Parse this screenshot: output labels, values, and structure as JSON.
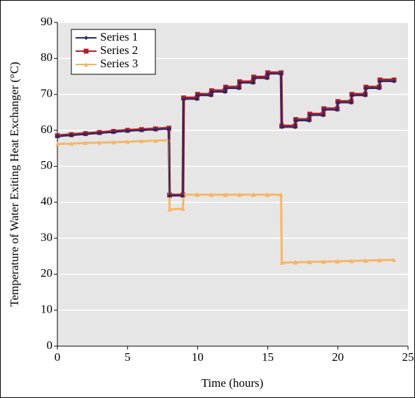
{
  "chart_data": {
    "type": "line",
    "xlabel": "Time (hours)",
    "ylabel": "Temperature of Water Exiting Heat Exchanger (°C)",
    "x": [
      0,
      1,
      2,
      3,
      4,
      5,
      6,
      7,
      7.95,
      8,
      8.95,
      9,
      9.95,
      10,
      10.95,
      11,
      11.95,
      12,
      12.95,
      13,
      13.95,
      14,
      14.95,
      15,
      15.95,
      16,
      16.95,
      17,
      17.95,
      18,
      18.95,
      19,
      19.95,
      20,
      20.95,
      21,
      21.95,
      22,
      22.95,
      23,
      24
    ],
    "series": [
      {
        "name": "Series 1",
        "color": "#1f2a6b",
        "marker": "diamond",
        "values": [
          58.3,
          58.6,
          58.9,
          59.2,
          59.5,
          59.8,
          60,
          60.2,
          60.4,
          41.8,
          41.8,
          68.7,
          68.7,
          69.7,
          69.7,
          70.7,
          70.7,
          71.7,
          71.7,
          73.2,
          73.2,
          74.5,
          74.5,
          75.7,
          75.7,
          60.9,
          60.9,
          62.7,
          62.7,
          64.2,
          64.2,
          65.7,
          65.7,
          67.7,
          67.7,
          69.7,
          69.7,
          71.7,
          71.7,
          73.6,
          73.6
        ]
      },
      {
        "name": "Series 2",
        "color": "#b01e2a",
        "marker": "square",
        "values": [
          58.5,
          58.8,
          59.1,
          59.4,
          59.7,
          60,
          60.2,
          60.4,
          60.6,
          42,
          42,
          69,
          69,
          70,
          70,
          71,
          71,
          72,
          72,
          73.5,
          73.5,
          74.8,
          74.8,
          76,
          76,
          61.2,
          61.2,
          63,
          63,
          64.5,
          64.5,
          66,
          66,
          68,
          68,
          70,
          70,
          72,
          72,
          74,
          74
        ]
      },
      {
        "name": "Series 3",
        "color": "#f5b565",
        "marker": "triangle",
        "values": [
          56.2,
          56.3,
          56.5,
          56.6,
          56.7,
          56.8,
          57,
          57.1,
          57.3,
          38,
          38.2,
          42.1,
          42.1,
          42.1,
          42.1,
          42.1,
          42.1,
          42.1,
          42.1,
          42.1,
          42.1,
          42.1,
          42.1,
          42.1,
          42.1,
          23.2,
          23.3,
          23.3,
          23.4,
          23.4,
          23.5,
          23.5,
          23.6,
          23.6,
          23.7,
          23.7,
          23.8,
          23.8,
          23.9,
          23.9,
          24
        ]
      }
    ],
    "xlim": [
      0,
      25
    ],
    "xticks": [
      0,
      5,
      10,
      15,
      20,
      25
    ],
    "ylim": [
      0,
      90
    ],
    "yticks": [
      0,
      10,
      20,
      30,
      40,
      50,
      60,
      70,
      80,
      90
    ],
    "grid": true,
    "legend": "upper left"
  }
}
